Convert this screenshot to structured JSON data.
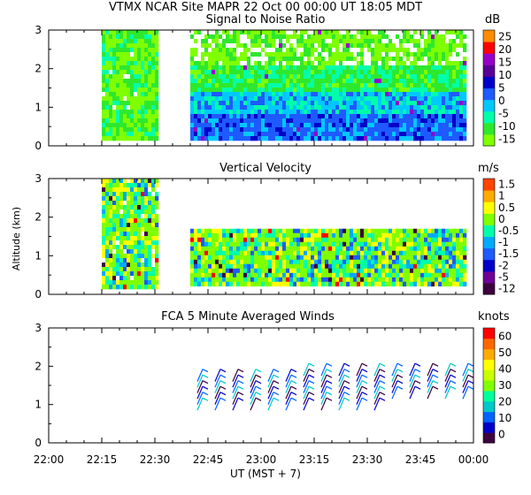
{
  "header": {
    "site_line": "VTMX   NCAR Site   MAPR 22 Oct 00   00:00 UT   18:05   MDT"
  },
  "x_axis": {
    "ticks": [
      "22:00",
      "22:15",
      "22:30",
      "22:45",
      "23:00",
      "23:15",
      "23:30",
      "23:45",
      "00:00"
    ],
    "label": "UT   (MST + 7)"
  },
  "shared_ylabel": "Altitude (km)",
  "colors": {
    "snr_scale": [
      "#7fff00",
      "#2ee82e",
      "#00ffaa",
      "#00c8ff",
      "#1e5aff",
      "#0000c8",
      "#5a0096",
      "#9600c8",
      "#ff0000",
      "#ff8c00",
      "#ffd700"
    ],
    "w_scale": [
      "#3c003c",
      "#6e0096",
      "#0000c8",
      "#1e5aff",
      "#00aaff",
      "#00ffaa",
      "#7fff00",
      "#ffff00",
      "#ffaa00",
      "#ff4400",
      "#ff0000"
    ],
    "knots_scale": [
      "#3c003c",
      "#0000c8",
      "#0064ff",
      "#00c8c8",
      "#00ff99",
      "#7fff00",
      "#c8ff00",
      "#ffff00",
      "#ffaa00",
      "#ff6600",
      "#ff0000"
    ]
  },
  "chart_data": [
    {
      "type": "heatmap",
      "title": "Signal to Noise Ratio",
      "colorbar_unit": "dB",
      "colorbar_ticks": [
        "25",
        "20",
        "15",
        "10",
        "5",
        "0",
        "-5",
        "-10",
        "-15"
      ],
      "xlim": [
        0,
        120
      ],
      "ylim": [
        0,
        3
      ],
      "y_ticks": [
        "0",
        "1",
        "2",
        "3"
      ],
      "ylabel": "",
      "data_blocks": [
        {
          "t0": 15,
          "t1": 31,
          "h0": 0.25,
          "h1": 3.0
        },
        {
          "t0": 40,
          "t1": 118,
          "h0": 0.25,
          "h1": 3.0
        }
      ]
    },
    {
      "type": "heatmap",
      "title": "Vertical Velocity",
      "colorbar_unit": "m/s",
      "colorbar_ticks": [
        "1.5",
        "1",
        "0.5",
        "0",
        "-0.5",
        "-1",
        "-1.5",
        "-2",
        "-5",
        "-12"
      ],
      "xlim": [
        0,
        120
      ],
      "ylim": [
        0,
        3
      ],
      "y_ticks": [
        "0",
        "1",
        "2",
        "3"
      ],
      "ylabel": "Altitude (km)",
      "data_blocks": [
        {
          "t0": 15,
          "t1": 31,
          "h0": 0.25,
          "h1": 3.0
        },
        {
          "t0": 40,
          "t1": 118,
          "h0": 0.25,
          "h1": 1.7
        }
      ]
    },
    {
      "type": "barbs",
      "title": "FCA 5 Minute Averaged Winds",
      "colorbar_unit": "knots",
      "colorbar_ticks": [
        "60",
        "50",
        "40",
        "30",
        "20",
        "10",
        "0"
      ],
      "xlim": [
        0,
        120
      ],
      "ylim": [
        0,
        3
      ],
      "y_ticks": [
        "0",
        "1",
        "2",
        "3"
      ],
      "ylabel": "",
      "stations_minutes": [
        42,
        47,
        52,
        57,
        62,
        67,
        72,
        77,
        82,
        87,
        92,
        97,
        102,
        107,
        112,
        117
      ],
      "levels_km": [
        0.85,
        1.0,
        1.15,
        1.3,
        1.45,
        1.6,
        1.75
      ]
    }
  ]
}
